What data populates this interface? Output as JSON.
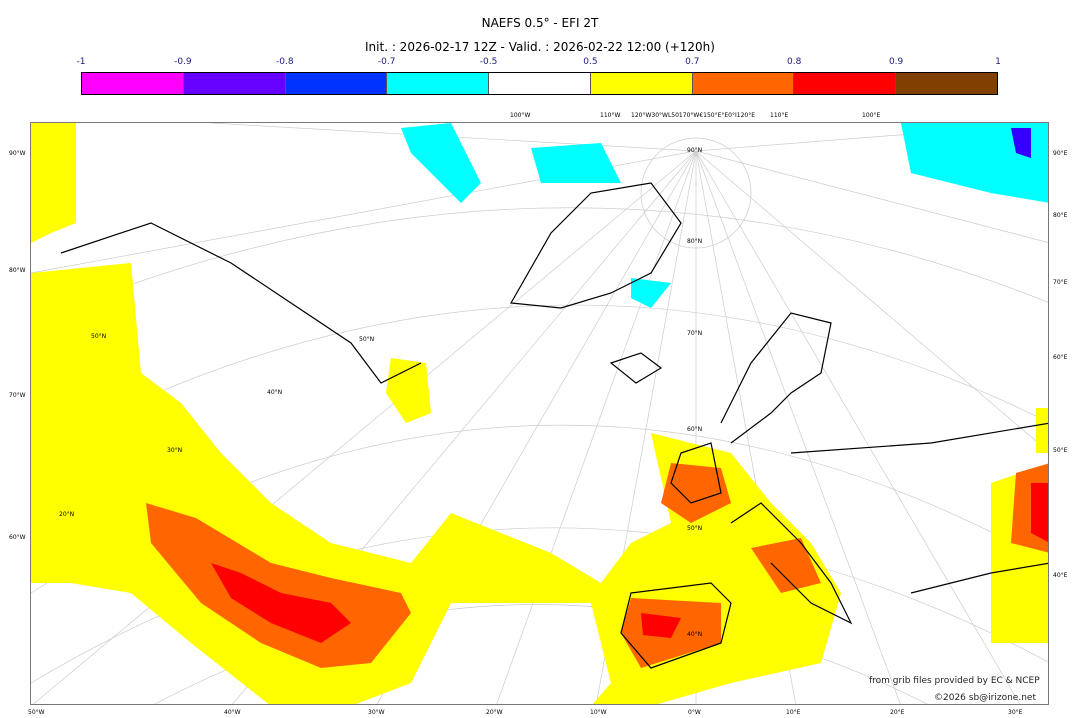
{
  "header": {
    "title": "NAEFS 0.5° - EFI 2T",
    "subtitle": "Init. : 2026-02-17 12Z - Valid. : 2026-02-22 12:00 (+120h)"
  },
  "colorbar": {
    "ticks": [
      "-1",
      "-0.9",
      "-0.8",
      "-0.7",
      "-0.5",
      "0.5",
      "0.7",
      "0.8",
      "0.9",
      "1"
    ],
    "colors": [
      "#ff00ff",
      "#6600ff",
      "#0033ff",
      "#00ffff",
      "#ffffff",
      "#ffff00",
      "#ff6600",
      "#ff0000",
      "#804000"
    ]
  },
  "map": {
    "left_labels": [
      "90°W",
      "80°W",
      "70°W",
      "60°W"
    ],
    "right_labels": [
      "90°E",
      "80°E",
      "70°E",
      "60°E",
      "50°E",
      "40°E"
    ],
    "bottom_labels": [
      "50°W",
      "40°W",
      "30°W",
      "20°W",
      "10°W",
      "0°W",
      "10°E",
      "20°E",
      "30°E"
    ],
    "top_labels": [
      "100°W",
      "110°W",
      "120°W30°WL50170°W€150°E°E0°I120°E",
      "110°E",
      "100°E"
    ],
    "inner_lat_labels": [
      "90°N",
      "80°N",
      "70°N",
      "60°N",
      "50°N",
      "40°N",
      "30°N",
      "20°N"
    ]
  },
  "credits": {
    "source": "from grib files provided by EC & NCEP",
    "copyright": "©2026 sb@irizone.net"
  }
}
